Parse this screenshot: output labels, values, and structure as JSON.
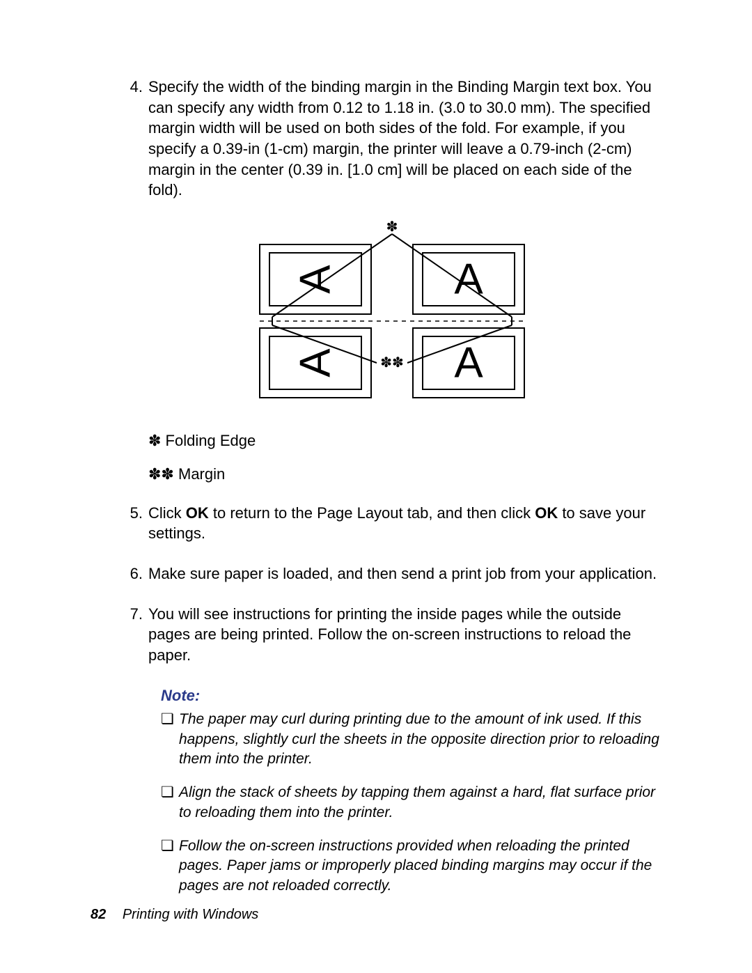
{
  "steps": {
    "s4_num": "4.",
    "s4_text": "Specify the width of the binding margin in the Binding Margin text box. You can specify any width from 0.12 to 1.18 in. (3.0 to 30.0 mm). The specified margin width will be used on both sides of the fold. For example, if you specify a 0.39-in (1-cm) margin, the printer will leave a 0.79-inch (2-cm) margin in the center (0.39 in. [1.0 cm] will be placed on each side of the fold).",
    "s5_num": "5.",
    "s5_pre": "Click ",
    "s5_ok1": "OK",
    "s5_mid": " to return to the Page Layout tab, and then click ",
    "s5_ok2": "OK",
    "s5_post": " to save your settings.",
    "s6_num": "6.",
    "s6_text": "Make sure paper is loaded, and then send a print job from your application.",
    "s7_num": "7.",
    "s7_text": "You will see instructions for printing the inside pages while the outside pages are being printed. Follow the on-screen instructions to reload the paper."
  },
  "legend": {
    "l1_sym": "✽",
    "l1_text": " Folding Edge",
    "l2_sym": "✽✽",
    "l2_text": " Margin"
  },
  "note": {
    "heading": "Note:",
    "n1": "The paper may curl during printing due to the amount of ink used. If this happens, slightly curl the sheets in the opposite direction prior to reloading them into the printer.",
    "n2": "Align the stack of sheets by tapping them against a hard, flat surface prior to reloading them into the printer.",
    "n3": "Follow the on-screen instructions provided when reloading the printed pages. Paper jams or improperly placed binding margins may occur if the pages are not reloaded correctly."
  },
  "footer": {
    "page_number": "82",
    "section": "Printing with Windows"
  },
  "diagram": {
    "letter": "A",
    "mark1": "✽",
    "mark2": "✽✽",
    "stroke": "#000000",
    "bg": "#ffffff",
    "outer_stroke_w": 2,
    "inner_stroke_w": 2,
    "dash": "6,6",
    "font_family": "Arial, Helvetica, sans-serif"
  },
  "bullet_glyph": "❏"
}
